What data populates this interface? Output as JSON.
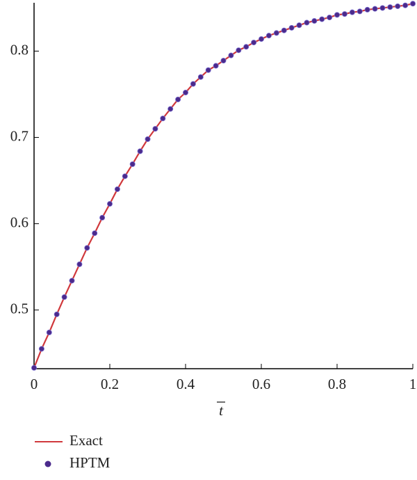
{
  "chart_data": {
    "type": "line",
    "x_label": "t",
    "x": [
      0,
      0.02,
      0.04,
      0.06,
      0.08,
      0.1,
      0.12,
      0.14,
      0.16,
      0.18,
      0.2,
      0.22,
      0.24,
      0.26,
      0.28,
      0.3,
      0.32,
      0.34,
      0.36,
      0.38,
      0.4,
      0.42,
      0.44,
      0.46,
      0.48,
      0.5,
      0.52,
      0.54,
      0.56,
      0.58,
      0.6,
      0.62,
      0.64,
      0.66,
      0.68,
      0.7,
      0.72,
      0.74,
      0.76,
      0.78,
      0.8,
      0.82,
      0.84,
      0.86,
      0.88,
      0.9,
      0.92,
      0.94,
      0.96,
      0.98,
      1
    ],
    "series": [
      {
        "name": "Exact",
        "color": "#d0383c",
        "style": "line",
        "values": [
          0.433,
          0.455,
          0.474,
          0.495,
          0.515,
          0.534,
          0.553,
          0.572,
          0.589,
          0.607,
          0.623,
          0.64,
          0.655,
          0.669,
          0.684,
          0.698,
          0.71,
          0.722,
          0.733,
          0.744,
          0.752,
          0.762,
          0.77,
          0.778,
          0.783,
          0.789,
          0.795,
          0.801,
          0.805,
          0.81,
          0.814,
          0.818,
          0.821,
          0.824,
          0.827,
          0.83,
          0.833,
          0.835,
          0.837,
          0.839,
          0.842,
          0.843,
          0.845,
          0.846,
          0.848,
          0.849,
          0.85,
          0.851,
          0.852,
          0.853,
          0.855
        ]
      },
      {
        "name": "HPTM",
        "color": "#4b2a8c",
        "style": "points",
        "values": [
          0.433,
          0.455,
          0.474,
          0.495,
          0.515,
          0.534,
          0.553,
          0.572,
          0.589,
          0.607,
          0.623,
          0.64,
          0.655,
          0.669,
          0.684,
          0.698,
          0.71,
          0.722,
          0.733,
          0.744,
          0.752,
          0.762,
          0.77,
          0.778,
          0.783,
          0.789,
          0.795,
          0.801,
          0.805,
          0.81,
          0.814,
          0.818,
          0.821,
          0.824,
          0.827,
          0.83,
          0.833,
          0.835,
          0.837,
          0.839,
          0.842,
          0.843,
          0.845,
          0.846,
          0.848,
          0.849,
          0.85,
          0.851,
          0.852,
          0.853,
          0.855
        ]
      }
    ],
    "xlim": [
      0,
      1
    ],
    "xticks": [
      0,
      0.2,
      0.4,
      0.6,
      0.8,
      1
    ],
    "ylim": [
      0.432,
      0.856
    ],
    "yticks": [
      0.5,
      0.6,
      0.7,
      0.8
    ],
    "grid": false,
    "legend": "bottom-left"
  }
}
